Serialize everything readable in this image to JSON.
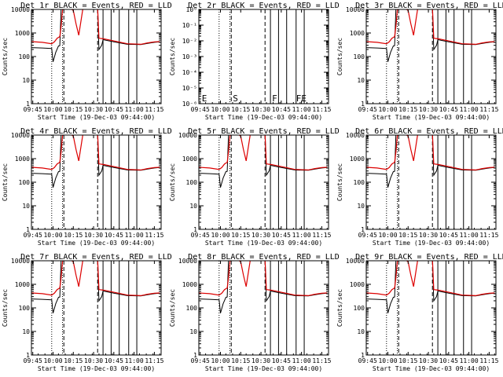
{
  "x_tick_labels": [
    "09:45",
    "10:00",
    "10:15",
    "10:30",
    "10:45",
    "11:00",
    "11:15"
  ],
  "xlabel": "Start Time (19-Dec-03 09:44:00)",
  "ylabel": "Counts/sec",
  "colors": {
    "events": "#000000",
    "lld": "#dd0000",
    "axes": "#000000",
    "background": "#ffffff"
  },
  "chart_data": [
    {
      "type": "line",
      "title": "Det 1r BLACK = Events, RED = LLD",
      "y_scale": "log",
      "ylim": [
        1,
        10000
      ],
      "y_tick_labels": [
        "1",
        "10",
        "100",
        "1000",
        "10000"
      ],
      "xlim": [
        "09:44",
        "11:20"
      ],
      "variant": "full",
      "markers": []
    },
    {
      "type": "line",
      "title": "Det 2r BLACK = Events, RED = LLD",
      "y_scale": "log",
      "ylim": [
        1e-06,
        1
      ],
      "y_tick_labels": [
        "10⁻⁶",
        "10⁻⁵",
        "10⁻⁴",
        "10⁻³",
        "10⁻²",
        "10⁻¹",
        "10⁰"
      ],
      "xlim": [
        "09:44",
        "11:20"
      ],
      "variant": "empty",
      "markers": [
        "E",
        "S",
        "F",
        "FE"
      ]
    },
    {
      "type": "line",
      "title": "Det 3r BLACK = Events, RED = LLD",
      "y_scale": "log",
      "ylim": [
        1,
        10000
      ],
      "y_tick_labels": [
        "1",
        "10",
        "100",
        "1000",
        "10000"
      ],
      "xlim": [
        "09:44",
        "11:20"
      ],
      "variant": "full",
      "markers": []
    },
    {
      "type": "line",
      "title": "Det 4r BLACK = Events, RED = LLD",
      "y_scale": "log",
      "ylim": [
        1,
        10000
      ],
      "y_tick_labels": [
        "1",
        "10",
        "100",
        "1000",
        "10000"
      ],
      "xlim": [
        "09:44",
        "11:20"
      ],
      "variant": "full",
      "markers": []
    },
    {
      "type": "line",
      "title": "Det 5r BLACK = Events, RED = LLD",
      "y_scale": "log",
      "ylim": [
        1,
        10000
      ],
      "y_tick_labels": [
        "1",
        "10",
        "100",
        "1000",
        "10000"
      ],
      "xlim": [
        "09:44",
        "11:20"
      ],
      "variant": "full",
      "markers": []
    },
    {
      "type": "line",
      "title": "Det 6r BLACK = Events, RED = LLD",
      "y_scale": "log",
      "ylim": [
        1,
        10000
      ],
      "y_tick_labels": [
        "1",
        "10",
        "100",
        "1000",
        "10000"
      ],
      "xlim": [
        "09:44",
        "11:20"
      ],
      "variant": "full",
      "markers": []
    },
    {
      "type": "line",
      "title": "Det 7r BLACK = Events, RED = LLD",
      "y_scale": "log",
      "ylim": [
        1,
        10000
      ],
      "y_tick_labels": [
        "1",
        "10",
        "100",
        "1000",
        "10000"
      ],
      "xlim": [
        "09:44",
        "11:20"
      ],
      "variant": "full",
      "markers": []
    },
    {
      "type": "line",
      "title": "Det 8r BLACK = Events, RED = LLD",
      "y_scale": "log",
      "ylim": [
        1,
        10000
      ],
      "y_tick_labels": [
        "1",
        "10",
        "100",
        "1000",
        "10000"
      ],
      "xlim": [
        "09:44",
        "11:20"
      ],
      "variant": "full",
      "markers": []
    },
    {
      "type": "line",
      "title": "Det 9r BLACK = Events, RED = LLD",
      "y_scale": "log",
      "ylim": [
        1,
        10000
      ],
      "y_tick_labels": [
        "1",
        "10",
        "100",
        "1000",
        "10000"
      ],
      "xlim": [
        "09:44",
        "11:20"
      ],
      "variant": "full",
      "markers": []
    }
  ],
  "vertical_lines": {
    "dotted": [
      "09:59",
      "10:07"
    ],
    "dashed": [
      "10:08",
      "10:33"
    ],
    "solid": [
      "10:37",
      "10:43",
      "10:49",
      "10:56",
      "11:02"
    ]
  },
  "events_series": {
    "x": [
      "09:44",
      "09:52",
      "09:59",
      "10:00",
      "10:02",
      "10:04",
      "10:05",
      "10:06",
      "10:07",
      "10:08",
      "10:10",
      "10:20",
      "10:30",
      "10:33",
      "10:34",
      "10:36",
      "10:37",
      "10:45",
      "10:55",
      "11:05",
      "11:10",
      "11:15",
      "11:19"
    ],
    "y": [
      240,
      230,
      220,
      60,
      150,
      280,
      290,
      12000,
      12000,
      12000,
      12000,
      12000,
      12000,
      12000,
      200,
      300,
      520,
      420,
      330,
      320,
      360,
      400,
      420
    ]
  },
  "lld_series": {
    "x": [
      "09:44",
      "09:52",
      "09:59",
      "10:01",
      "10:03",
      "10:05",
      "10:06",
      "10:07",
      "10:08",
      "10:12",
      "10:15",
      "10:17",
      "10:19",
      "10:22",
      "10:25",
      "10:27",
      "10:29",
      "10:33",
      "10:34",
      "10:36",
      "10:38",
      "10:45",
      "10:55",
      "11:05",
      "11:10",
      "11:15",
      "11:19"
    ],
    "y": [
      430,
      400,
      350,
      420,
      600,
      700,
      2000,
      9000,
      12000,
      12000,
      9000,
      2500,
      800,
      10000,
      12000,
      12000,
      12000,
      12000,
      600,
      580,
      560,
      460,
      350,
      330,
      380,
      420,
      430
    ]
  }
}
